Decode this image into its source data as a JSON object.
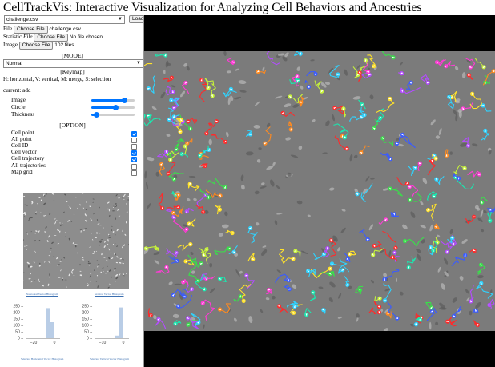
{
  "app": {
    "title": "CellTrackVis: Interactive Visualization for Analyzing Cell Behaviors and Ancestries"
  },
  "file_select": {
    "value": "challenge.csv",
    "load_label": "Load"
  },
  "inputs": {
    "file": {
      "label": "File",
      "button": "Choose File",
      "status": "challenge.csv"
    },
    "statistic": {
      "label_prefix": "Statistic",
      "label_italic": "File",
      "button": "Choose File",
      "status": "No file chosen"
    },
    "image": {
      "label": "Image",
      "button": "Choose File",
      "status": "102 files"
    }
  },
  "mode": {
    "heading": "[MODE]",
    "value": "Normal"
  },
  "keymap": {
    "heading": "[Keymap]",
    "text": "H: horizontal, V: vertical, M: merge, S: selection",
    "current": "current: add"
  },
  "sliders": [
    {
      "label": "Image",
      "value": 0.75
    },
    {
      "label": "Circle",
      "value": 0.55
    },
    {
      "label": "Thickness",
      "value": 0.12
    }
  ],
  "option": {
    "heading": "[OPTION]",
    "items": [
      {
        "label": "Cell point",
        "checked": true
      },
      {
        "label": "All point",
        "checked": false
      },
      {
        "label": "Cell ID",
        "checked": false
      },
      {
        "label": "Cell vector",
        "checked": true
      },
      {
        "label": "Cell trajectory",
        "checked": true
      },
      {
        "label": "All trajectories",
        "checked": false
      },
      {
        "label": "Map grid",
        "checked": false
      }
    ]
  },
  "histograms": [
    {
      "title": "Horizontal Vector Histogram",
      "xlabel": "Selected Horizontal Vector Histogram",
      "yticks": [
        "250 –",
        "200 –",
        "150 –",
        "100 –",
        "50 –",
        "0 –"
      ],
      "xticks": [
        "−20",
        "0"
      ],
      "color": "#b9cde6"
    },
    {
      "title": "Vertical Vector Histogram",
      "xlabel": "Selected Vertical Vector Histogram",
      "yticks": [
        "250 –",
        "200 –",
        "150 –",
        "100 –",
        "50 –",
        "0 –"
      ],
      "xticks": [
        "−10",
        "0"
      ],
      "color": "#b9cde6"
    }
  ]
}
